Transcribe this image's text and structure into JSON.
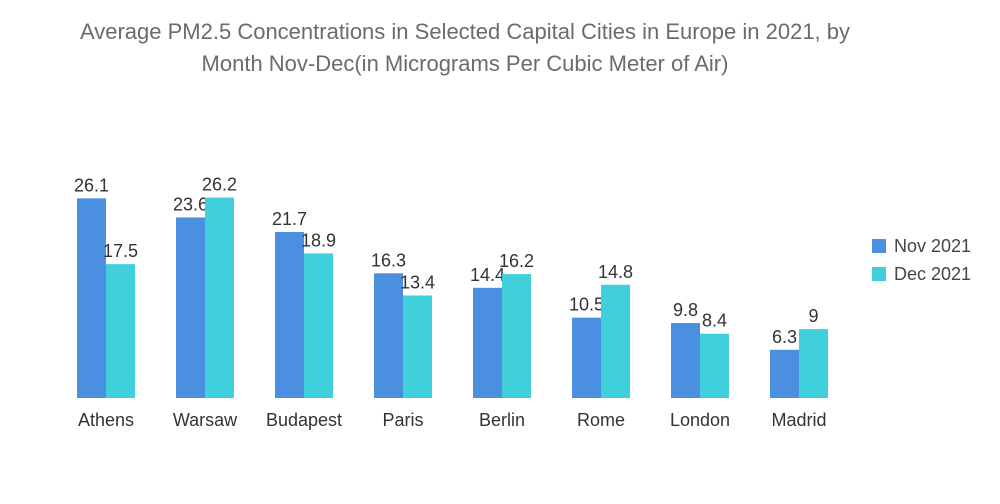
{
  "chart_data": {
    "type": "bar",
    "title": "Average PM2.5 Concentrations in Selected Capital Cities in Europe in 2021, by Month Nov-Dec(in Micrograms Per Cubic Meter of Air)",
    "xlabel": "",
    "ylabel": "",
    "ylim": [
      0,
      30
    ],
    "grid": false,
    "legend_position": "right",
    "categories": [
      "Athens",
      "Warsaw",
      "Budapest",
      "Paris",
      "Berlin",
      "Rome",
      "London",
      "Madrid"
    ],
    "series": [
      {
        "name": "Nov 2021",
        "color": "#4a8fe0",
        "values": [
          26.1,
          23.6,
          21.7,
          16.3,
          14.4,
          10.5,
          9.8,
          6.3
        ],
        "labels": [
          "26.1",
          "23.6",
          "21.7",
          "16.3",
          "14.4",
          "10.5",
          "9.8",
          "6.3"
        ]
      },
      {
        "name": "Dec 2021",
        "color": "#3fd0db",
        "values": [
          17.5,
          26.2,
          18.9,
          13.4,
          16.2,
          14.8,
          8.4,
          9
        ],
        "labels": [
          "17.5",
          "26.2",
          "18.9",
          "13.4",
          "16.2",
          "14.8",
          "8.4",
          "9"
        ]
      }
    ]
  }
}
